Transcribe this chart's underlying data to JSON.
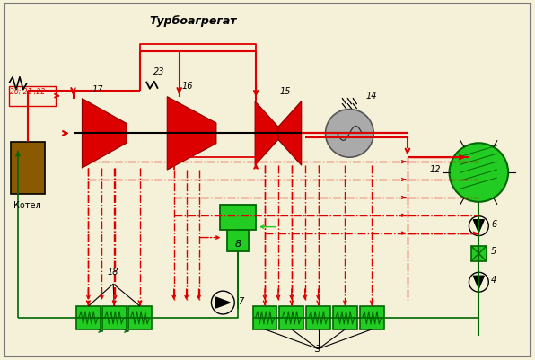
{
  "bg": "#f5f0d8",
  "red": "#dd0000",
  "green": "#22cc22",
  "dkgreen": "#006600",
  "boiler": "#8B5A00",
  "gray": "#aaaaaa",
  "black": "#000000",
  "title": "Турбоагрегат"
}
